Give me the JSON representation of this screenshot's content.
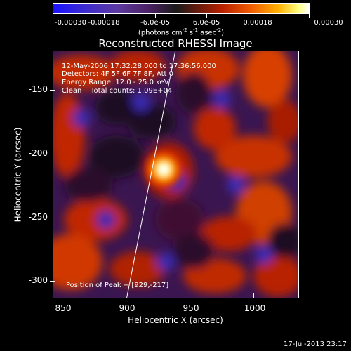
{
  "colorbar": {
    "ticks": [
      "-0.00030",
      "-0.00018",
      "-6.0e-05",
      "6.0e-05",
      "0.00018",
      "0.00030"
    ],
    "units_html": "(photons cm<sup>-2</sup> s<sup>-1</sup> asec<sup>-2</sup>)"
  },
  "chart_data": {
    "type": "heatmap",
    "title": "Reconstructed RHESSI Image",
    "xlabel": "Heliocentric X (arcsec)",
    "ylabel": "Heliocentric Y (arcsec)",
    "xlim": [
      843,
      1035
    ],
    "ylim": [
      -318,
      -125
    ],
    "xticks": [
      "850",
      "900",
      "950",
      "1000"
    ],
    "yticks": [
      "-150",
      "-200",
      "-250",
      "-300"
    ],
    "colorbar_range": [
      -0.0003,
      0.0003
    ],
    "peak": {
      "x": 929,
      "y": -217
    },
    "limb_line": [
      [
        900,
        -318
      ],
      [
        938,
        -125
      ]
    ],
    "annotations": {
      "time": "12-May-2006 17:32:28.000 to 17:36:56.000",
      "detectors": "Detectors: 4F 5F 6F 7F 8F, Att 0",
      "energy": "Energy Range: 12.0 - 25.0 keV",
      "method": "Clean    Total counts: 1.09E+04",
      "peak_text": "Position of Peak = [929,-217]"
    }
  },
  "footer": {
    "timestamp": "17-Jul-2013 23:17"
  }
}
